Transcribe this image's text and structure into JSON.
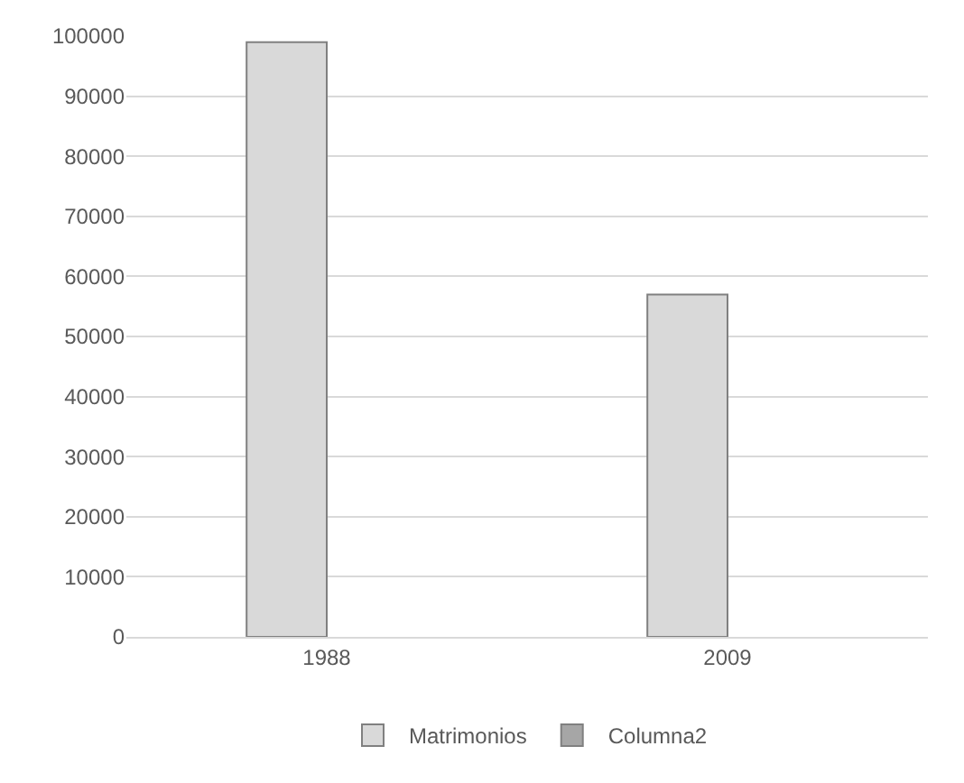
{
  "chart_data": {
    "type": "bar",
    "categories": [
      "1988",
      "2009"
    ],
    "series": [
      {
        "name": "Matrimonios",
        "color": "#d9d9d9",
        "values": [
          99000,
          57000
        ]
      },
      {
        "name": "Columna2",
        "color": "#a6a6a6",
        "values": [
          null,
          null
        ]
      }
    ],
    "ylim": [
      0,
      100000
    ],
    "yticks": [
      0,
      10000,
      20000,
      30000,
      40000,
      50000,
      60000,
      70000,
      80000,
      90000,
      100000
    ],
    "grid": "y",
    "legend": "bottom"
  }
}
